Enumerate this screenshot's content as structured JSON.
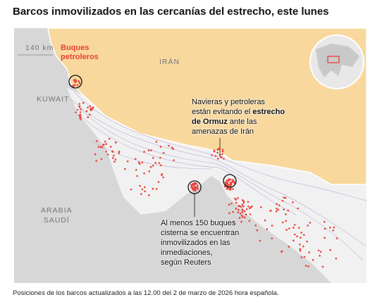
{
  "title": "Barcos inmovilizados en las cercanías del estrecho, este lunes",
  "scale": "140 km",
  "labels": {
    "buques": [
      "Buques",
      "petroleros"
    ],
    "iran": "IRÁN",
    "kuwait": "KUWAIT",
    "arabia": [
      "ARABIA",
      "SAUDÍ"
    ]
  },
  "annotations": {
    "ormuz": [
      [
        "Navieras y petroleras"
      ],
      [
        "están evitando el ",
        "estrecho"
      ],
      [
        "de Ormuz",
        " ante las"
      ],
      [
        "amenazas de Irán"
      ]
    ],
    "reuters": [
      "Al menos 150 buques",
      "cisterna se encuentran",
      "inmovilizados en las",
      "inmediaciones,",
      "según Reuters"
    ]
  },
  "footer": "Posiciones de los barcos actualizados a las 12.00 del 2 de marzo de 2026 hora española."
}
